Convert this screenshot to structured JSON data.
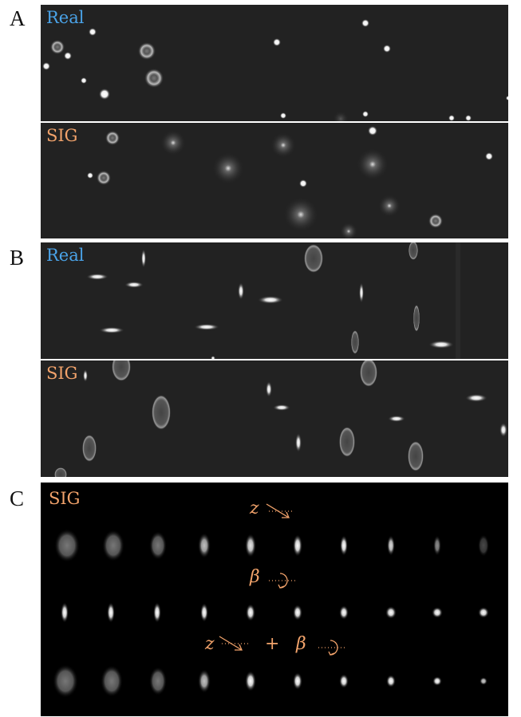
{
  "panels": {
    "A": {
      "letter": "A",
      "top_label": "Real",
      "bottom_label": "SIG"
    },
    "B": {
      "letter": "B",
      "top_label": "Real",
      "bottom_label": "SIG"
    },
    "C": {
      "letter": "C",
      "label": "SIG",
      "row1_caption_var": "z",
      "row2_caption_var": "β",
      "row3_caption_var1": "z",
      "row3_caption_plus": "+",
      "row3_caption_var2": "β"
    }
  },
  "colors": {
    "real_label": "#4aa3e8",
    "sig_label": "#f2a36b",
    "background_gray": "#222222",
    "panel_c_background": "#000000"
  },
  "icons": {
    "translation_arrow": "dotted-diagonal-arrow-icon",
    "rotation_arrow": "dotted-rotation-arrow-icon"
  }
}
